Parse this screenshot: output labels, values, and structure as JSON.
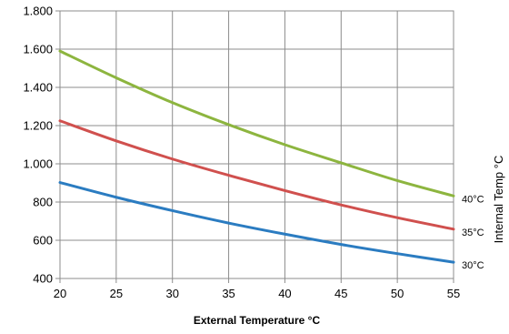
{
  "chart_data": {
    "type": "line",
    "title": "",
    "xlabel": "External Temperature °C",
    "ylabel": "Internal Temp °C",
    "xlim": [
      20,
      55
    ],
    "ylim": [
      400,
      1800
    ],
    "x_ticks": [
      "20",
      "25",
      "30",
      "35",
      "40",
      "45",
      "50",
      "55"
    ],
    "y_ticks": [
      "400",
      "600",
      "800",
      "1.000",
      "1.200",
      "1.400",
      "1.600",
      "1.800"
    ],
    "grid": true,
    "legend": "inline-right",
    "x": [
      20,
      25,
      30,
      35,
      40,
      45,
      50,
      55
    ],
    "series": [
      {
        "name": "40°C",
        "color": "#8DB53F",
        "values": [
          1590,
          1450,
          1320,
          1205,
          1100,
          1005,
          912,
          832
        ]
      },
      {
        "name": "35°C",
        "color": "#D0504E",
        "values": [
          1225,
          1120,
          1025,
          940,
          860,
          785,
          718,
          658
        ]
      },
      {
        "name": "30°C",
        "color": "#2B7CC1",
        "values": [
          902,
          825,
          755,
          690,
          632,
          578,
          530,
          485
        ]
      }
    ]
  }
}
